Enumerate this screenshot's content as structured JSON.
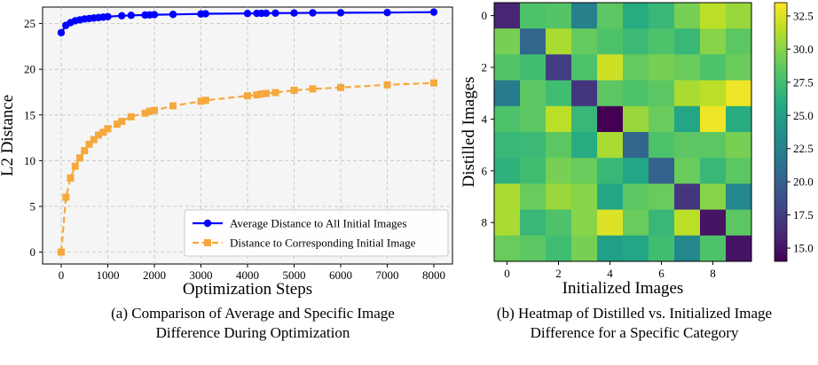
{
  "chart_data": [
    {
      "type": "line",
      "xlabel": "Optimization Steps",
      "ylabel": "L2 Distance",
      "xlim": [
        -400,
        8400
      ],
      "ylim": [
        -1.3,
        26.8
      ],
      "xticks": [
        0,
        1000,
        2000,
        3000,
        4000,
        5000,
        6000,
        7000,
        8000
      ],
      "yticks": [
        0,
        5,
        10,
        15,
        20,
        25
      ],
      "grid": true,
      "legend": "lower-right",
      "caption_line1": "(a) Comparison of Average and Specific Image",
      "caption_line2": "Difference During Optimization",
      "series": [
        {
          "name": "Average Distance to All Initial Images",
          "color": "#0000ff",
          "style": "solid",
          "marker": "circle",
          "x": [
            0,
            100,
            200,
            300,
            400,
            500,
            600,
            700,
            800,
            900,
            1000,
            1300,
            1500,
            1800,
            1900,
            2000,
            2400,
            3000,
            3100,
            4000,
            4200,
            4300,
            4400,
            4600,
            5000,
            5400,
            6000,
            7000,
            8000
          ],
          "y": [
            24.0,
            24.8,
            25.1,
            25.3,
            25.4,
            25.5,
            25.55,
            25.6,
            25.65,
            25.7,
            25.75,
            25.85,
            25.9,
            25.93,
            25.95,
            25.97,
            26.0,
            26.05,
            26.07,
            26.1,
            26.12,
            26.12,
            26.13,
            26.14,
            26.15,
            26.17,
            26.18,
            26.2,
            26.25
          ]
        },
        {
          "name": "Distance to Corresponding Initial Image",
          "color": "#f5a83d",
          "style": "dashed",
          "marker": "square",
          "x": [
            0,
            100,
            200,
            300,
            400,
            500,
            600,
            700,
            800,
            900,
            1000,
            1200,
            1300,
            1500,
            1800,
            1900,
            2000,
            2400,
            3000,
            3100,
            4000,
            4200,
            4300,
            4400,
            4600,
            5000,
            5400,
            6000,
            7000,
            8000
          ],
          "y": [
            0.0,
            6.0,
            8.1,
            9.4,
            10.3,
            11.1,
            11.8,
            12.3,
            12.8,
            13.1,
            13.5,
            14.0,
            14.3,
            14.8,
            15.2,
            15.4,
            15.5,
            16.0,
            16.5,
            16.6,
            17.1,
            17.2,
            17.3,
            17.35,
            17.45,
            17.7,
            17.85,
            18.0,
            18.3,
            18.5
          ]
        }
      ]
    },
    {
      "type": "heatmap",
      "xlabel": "Initialized Images",
      "ylabel": "Distilled Images",
      "xticks": [
        "0",
        "2",
        "4",
        "6",
        "8"
      ],
      "yticks": [
        "0",
        "2",
        "4",
        "6",
        "8"
      ],
      "colormap": "viridis",
      "vmin": 14.0,
      "vmax": 33.5,
      "colorbar_ticks": [
        15.0,
        17.5,
        20.0,
        22.5,
        25.0,
        27.5,
        30.0,
        32.5
      ],
      "colorbar_labels": [
        "15.0",
        "17.5",
        "20.0",
        "22.5",
        "25.0",
        "27.5",
        "30.0",
        "32.5"
      ],
      "caption_line1": "(b) Heatmap of Distilled vs. Initialized Image",
      "caption_line2": "Difference for a Specific Category",
      "values": [
        [
          16.0,
          28.0,
          28.2,
          22.5,
          28.5,
          26.0,
          27.0,
          29.5,
          31.5,
          30.5
        ],
        [
          29.5,
          20.5,
          31.0,
          28.8,
          28.0,
          27.2,
          28.0,
          27.0,
          30.0,
          28.5
        ],
        [
          28.2,
          27.5,
          17.5,
          28.0,
          32.0,
          28.8,
          29.5,
          29.0,
          28.0,
          29.0
        ],
        [
          22.0,
          28.5,
          27.5,
          17.0,
          28.5,
          28.0,
          28.5,
          31.0,
          31.5,
          33.0
        ],
        [
          28.0,
          28.5,
          31.5,
          27.0,
          14.0,
          30.5,
          29.0,
          25.5,
          33.0,
          26.0
        ],
        [
          27.0,
          27.2,
          28.5,
          26.0,
          31.0,
          20.5,
          28.0,
          28.5,
          28.5,
          29.5
        ],
        [
          26.5,
          27.5,
          29.5,
          29.0,
          27.0,
          25.5,
          20.0,
          29.0,
          27.0,
          28.5
        ],
        [
          31.0,
          29.0,
          30.5,
          30.0,
          25.5,
          28.5,
          29.0,
          17.0,
          30.0,
          23.0
        ],
        [
          31.0,
          27.0,
          28.0,
          30.0,
          32.5,
          29.0,
          27.0,
          31.5,
          15.0,
          28.5
        ],
        [
          29.0,
          28.5,
          27.5,
          29.5,
          25.0,
          25.5,
          27.5,
          23.0,
          28.0,
          15.0
        ]
      ]
    }
  ]
}
